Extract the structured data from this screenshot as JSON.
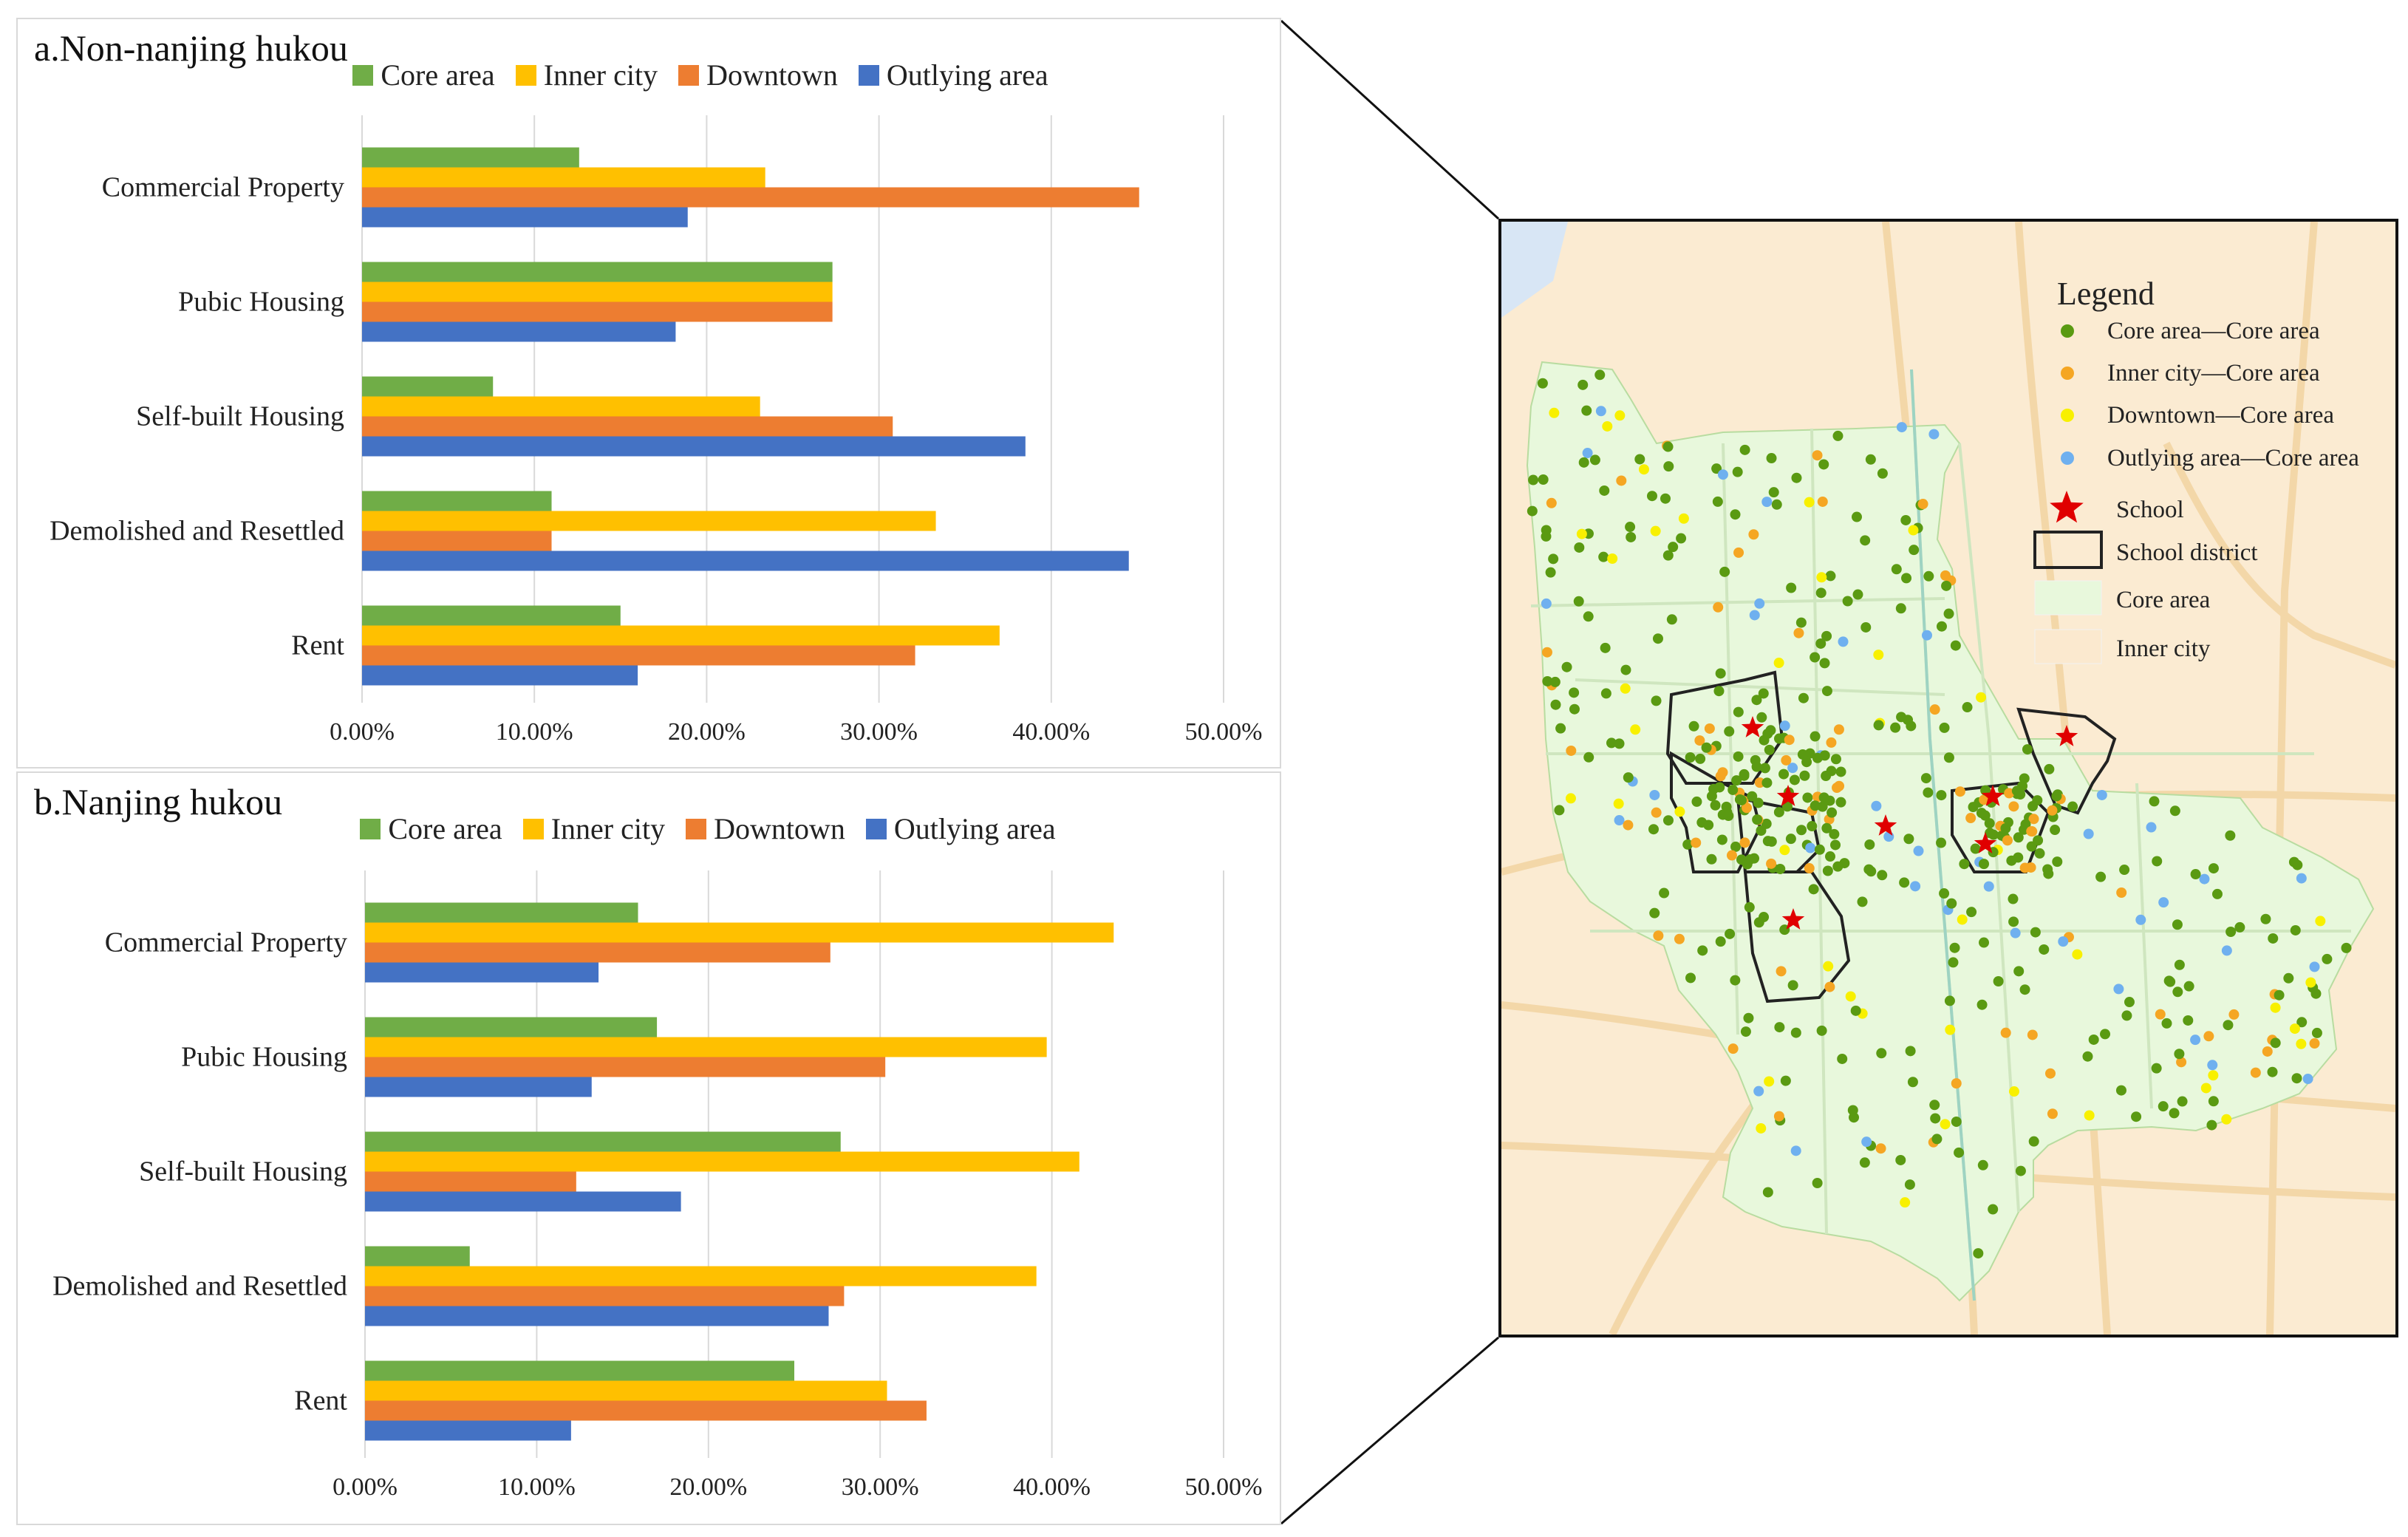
{
  "colors": {
    "core": "#70ad47",
    "inner": "#ffc000",
    "downtown": "#ed7d31",
    "outlying": "#4472c4"
  },
  "panels": {
    "a": {
      "title": "a.Non-nanjing hukou"
    },
    "b": {
      "title": "b.Nanjing hukou"
    }
  },
  "legend": {
    "core": "Core area",
    "inner": "Inner city",
    "downtown": "Downtown",
    "outlying": "Outlying area"
  },
  "chart_data": [
    {
      "type": "bar",
      "orientation": "horizontal",
      "title": "a.Non-nanjing hukou",
      "categories": [
        "Commercial Property",
        "Pubic Housing",
        "Self-built Housing",
        "Demolished and Resettled",
        "Rent"
      ],
      "series": [
        {
          "name": "Core area",
          "key": "core",
          "values": [
            12.6,
            27.3,
            7.6,
            11.0,
            15.0
          ]
        },
        {
          "name": "Inner city",
          "key": "inner",
          "values": [
            23.4,
            27.3,
            23.1,
            33.3,
            37.0
          ]
        },
        {
          "name": "Downtown",
          "key": "downtown",
          "values": [
            45.1,
            27.3,
            30.8,
            11.0,
            32.1
          ]
        },
        {
          "name": "Outlying area",
          "key": "outlying",
          "values": [
            18.9,
            18.2,
            38.5,
            44.5,
            16.0
          ]
        }
      ],
      "xlim": [
        0,
        50
      ],
      "ticks": [
        "0.00%",
        "10.00%",
        "20.00%",
        "30.00%",
        "40.00%",
        "50.00%"
      ],
      "grid": true
    },
    {
      "type": "bar",
      "orientation": "horizontal",
      "title": "b.Nanjing hukou",
      "categories": [
        "Commercial Property",
        "Pubic Housing",
        "Self-built Housing",
        "Demolished and Resettled",
        "Rent"
      ],
      "series": [
        {
          "name": "Core area",
          "key": "core",
          "values": [
            15.9,
            17.0,
            27.7,
            6.1,
            25.0
          ]
        },
        {
          "name": "Inner city",
          "key": "inner",
          "values": [
            43.6,
            39.7,
            41.6,
            39.1,
            30.4
          ]
        },
        {
          "name": "Downtown",
          "key": "downtown",
          "values": [
            27.1,
            30.3,
            12.3,
            27.9,
            32.7
          ]
        },
        {
          "name": "Outlying area",
          "key": "outlying",
          "values": [
            13.6,
            13.2,
            18.4,
            27.0,
            12.0
          ]
        }
      ],
      "xlim": [
        0,
        50
      ],
      "ticks": [
        "0.00%",
        "10.00%",
        "20.00%",
        "30.00%",
        "40.00%",
        "50.00%"
      ],
      "grid": true
    }
  ],
  "map": {
    "legend_title": "Legend",
    "legend_items": [
      {
        "label": "Core area—Core area",
        "color": "#5a9a12",
        "kind": "dot"
      },
      {
        "label": "Inner city—Core area",
        "color": "#f5a623",
        "kind": "dot"
      },
      {
        "label": "Downtown—Core area",
        "color": "#f8f000",
        "kind": "dot"
      },
      {
        "label": "Outlying area—Core area",
        "color": "#6fb0ef",
        "kind": "dot"
      },
      {
        "label": "School",
        "color": "#e00000",
        "kind": "star"
      },
      {
        "label": "School district",
        "color": "#222222",
        "kind": "outline"
      },
      {
        "label": "Core area",
        "color": "#e8f8dc",
        "kind": "area"
      },
      {
        "label": "Inner city",
        "color": "#fbe9cf",
        "kind": "area"
      }
    ]
  }
}
